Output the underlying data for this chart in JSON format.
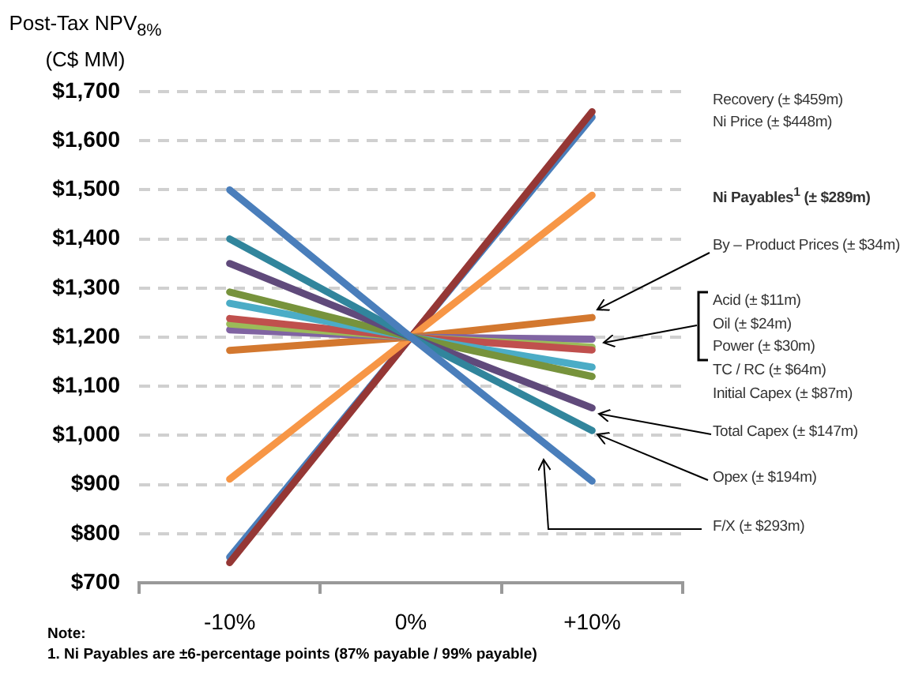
{
  "chart_data": {
    "type": "line",
    "ylabel": "Post-Tax NPV$_{8%}$\n(C$ MM)",
    "categories": [
      "-10%",
      "0%",
      "+10%"
    ],
    "series": [
      {
        "color": "#4a7ebb",
        "values": [
          752,
          1200,
          1648
        ]
      },
      {
        "color": "#953735",
        "values": [
          741,
          1200,
          1659
        ]
      },
      {
        "color": "#f79646",
        "values": [
          911,
          1200,
          1489
        ]
      },
      {
        "color": "#d3782f",
        "values": [
          1173,
          1200,
          1240
        ]
      },
      {
        "color": "#8064a2",
        "values": [
          1215,
          1200,
          1196
        ]
      },
      {
        "color": "#9bbb59",
        "values": [
          1227,
          1200,
          1180
        ]
      },
      {
        "color": "#c0504d",
        "values": [
          1238,
          1200,
          1174
        ]
      },
      {
        "color": "#4bacc6",
        "values": [
          1269,
          1200,
          1139
        ]
      },
      {
        "color": "#77933c",
        "values": [
          1292,
          1200,
          1120
        ]
      },
      {
        "color": "#604a7b",
        "values": [
          1350,
          1200,
          1056
        ]
      },
      {
        "color": "#31859c",
        "values": [
          1400,
          1200,
          1010
        ]
      },
      {
        "color": "#4a7ebb",
        "values": [
          1500,
          1200,
          907
        ]
      }
    ],
    "ylim": [
      700,
      1700
    ],
    "yticks": [
      {
        "value": 700,
        "label": "$700"
      },
      {
        "value": 800,
        "label": "$800"
      },
      {
        "value": 900,
        "label": "$900"
      },
      {
        "value": 1000,
        "label": "$1,000"
      },
      {
        "value": 1100,
        "label": "$1,100"
      },
      {
        "value": 1200,
        "label": "$1,200"
      },
      {
        "value": 1300,
        "label": "$1,300"
      },
      {
        "value": 1400,
        "label": "$1,400"
      },
      {
        "value": 1500,
        "label": "$1,500"
      },
      {
        "value": 1600,
        "label": "$1,600"
      },
      {
        "value": 1700,
        "label": "$1,700"
      }
    ],
    "grid": "y",
    "marker": "none",
    "annotations": [
      "Recovery (± $459m)",
      "Ni Price (± $448m)",
      "Ni Payables$^{1}$ (± $289m)",
      "By – Product Prices (± $34m)",
      "Acid (± $11m)",
      "Oil (± $24m)",
      "Power (± $30m)",
      "TC / RC  (± $64m)",
      "Initial Capex (± $87m)",
      "Total Capex (± $147m)",
      "Opex (± $194m)",
      "F/X (± $293m)",
      "Note:",
      "1.  Ni Payables are ±6-percentage points (87% payable / 99% payable)"
    ]
  }
}
